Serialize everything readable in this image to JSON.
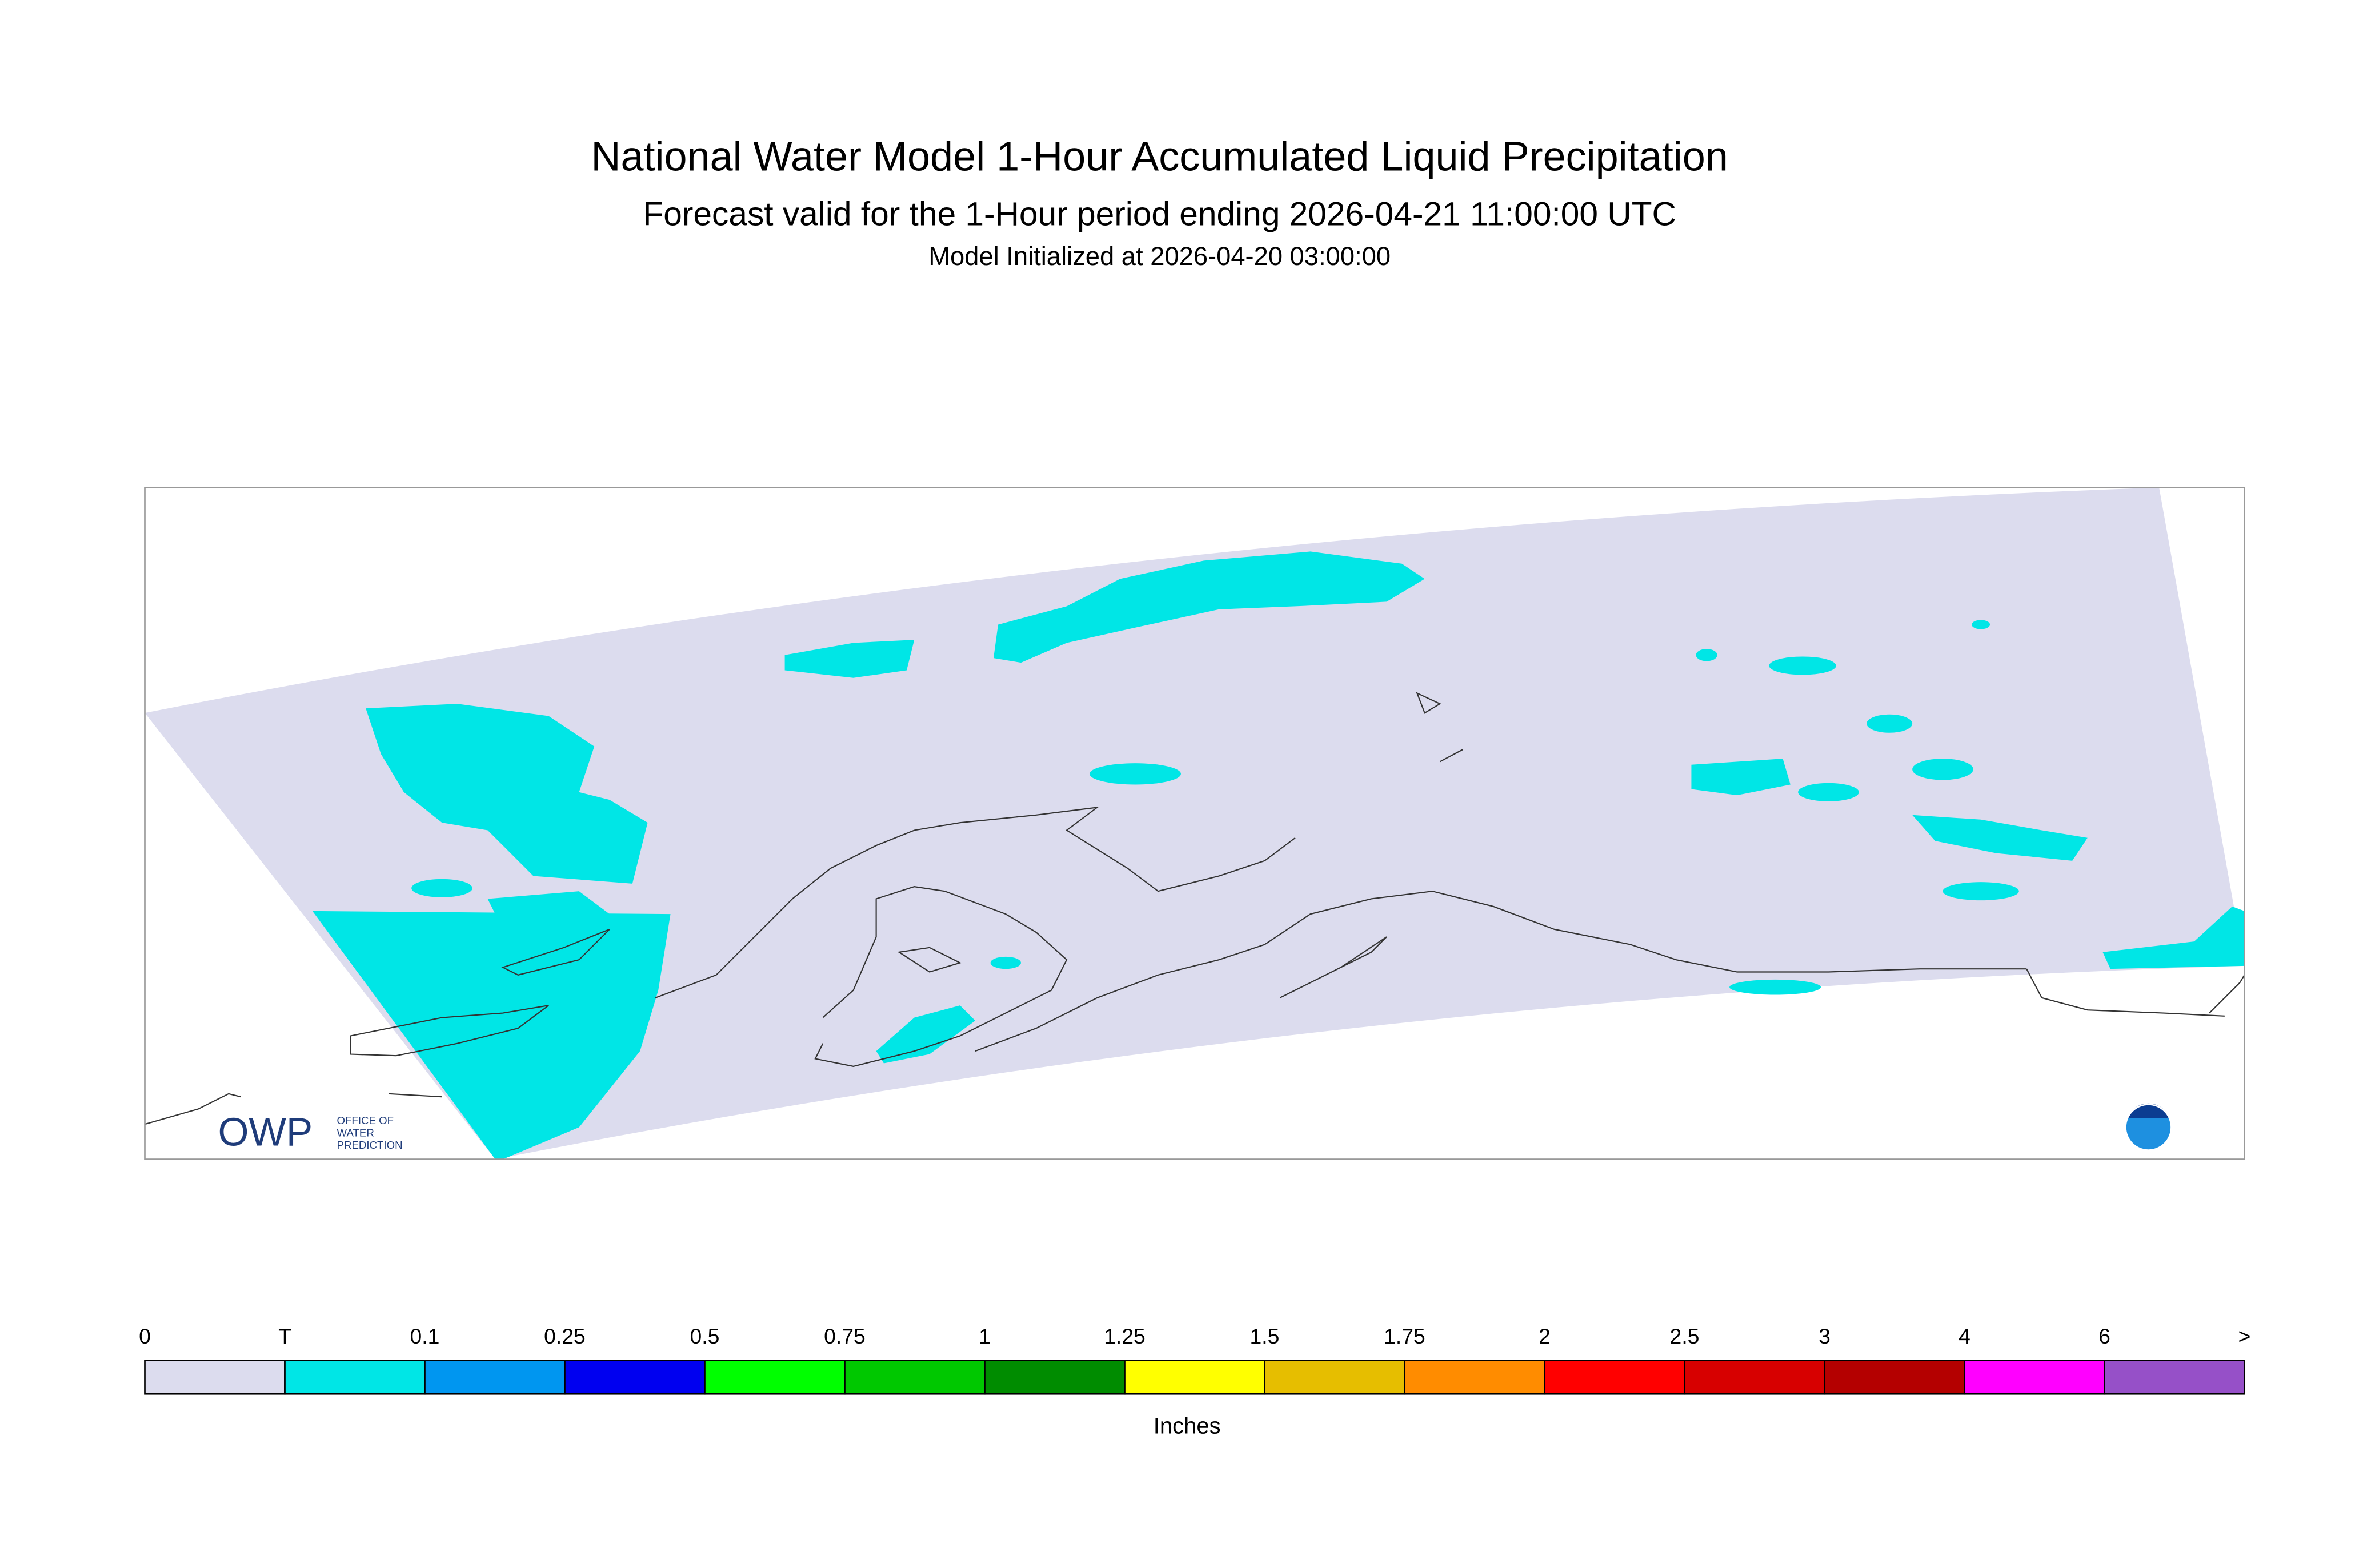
{
  "header": {
    "title": "National Water Model 1-Hour Accumulated Liquid Precipitation",
    "subtitle": "Forecast valid for the 1-Hour period ending 2026-04-21 11:00:00 UTC",
    "initialized": "Model Initialized at 2026-04-20 03:00:00"
  },
  "legend": {
    "labels": [
      "0",
      "T",
      "0.1",
      "0.25",
      "0.5",
      "0.75",
      "1",
      "1.25",
      "1.5",
      "1.75",
      "2",
      "2.5",
      "3",
      "4",
      "6",
      ">"
    ],
    "colors": [
      "#dcdcee",
      "#00e6e6",
      "#0096f0",
      "#0000f0",
      "#00ff00",
      "#00c800",
      "#008c00",
      "#ffff00",
      "#e6be00",
      "#ff8c00",
      "#ff0000",
      "#d70000",
      "#b40000",
      "#ff00ff",
      "#9650c8"
    ],
    "unit": "Inches"
  },
  "logo": {
    "name": "OWP",
    "line1": "OFFICE OF",
    "line2": "WATER",
    "line3": "PREDICTION"
  }
}
